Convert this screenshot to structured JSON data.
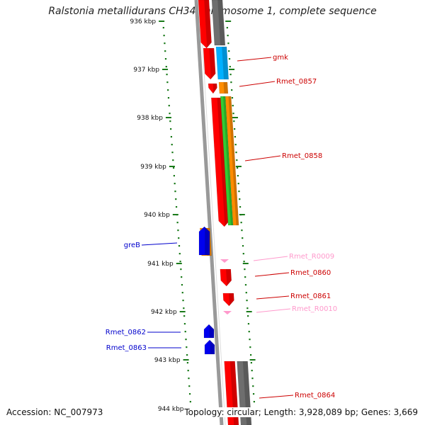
{
  "title": "Ralstonia metallidurans CH34 chromosome 1, complete sequence",
  "footer": {
    "accession": "Accession: NC_007973",
    "topology": "Topology: circular; Length: 3,928,089 bp; Genes: 3,669"
  },
  "ticks": [
    "936 kbp",
    "937 kbp",
    "938 kbp",
    "939 kbp",
    "940 kbp",
    "941 kbp",
    "942 kbp",
    "943 kbp",
    "944 kbp"
  ],
  "colors": {
    "cds": "#ff0000",
    "gene": "#ff8c00",
    "rna": "#ff99cc",
    "mrna": "#00b0ff",
    "green": "#33cc33",
    "grey": "#6e6e6e",
    "backbone": "#999999",
    "reverse_cds": "#0000ee",
    "ticks": "#1a7a1a"
  },
  "gene_labels": [
    {
      "name": "gmk",
      "color": "#cc0000"
    },
    {
      "name": "Rmet_0857",
      "color": "#cc0000"
    },
    {
      "name": "Rmet_0858",
      "color": "#cc0000"
    },
    {
      "name": "greB",
      "color": "#0000cc"
    },
    {
      "name": "Rmet_R0009",
      "color": "#ff99cc"
    },
    {
      "name": "Rmet_0860",
      "color": "#cc0000"
    },
    {
      "name": "Rmet_0861",
      "color": "#cc0000"
    },
    {
      "name": "Rmet_R0010",
      "color": "#ff99cc"
    },
    {
      "name": "Rmet_0862",
      "color": "#0000cc"
    },
    {
      "name": "Rmet_0863",
      "color": "#0000cc"
    },
    {
      "name": "Rmet_0864",
      "color": "#cc0000"
    }
  ]
}
